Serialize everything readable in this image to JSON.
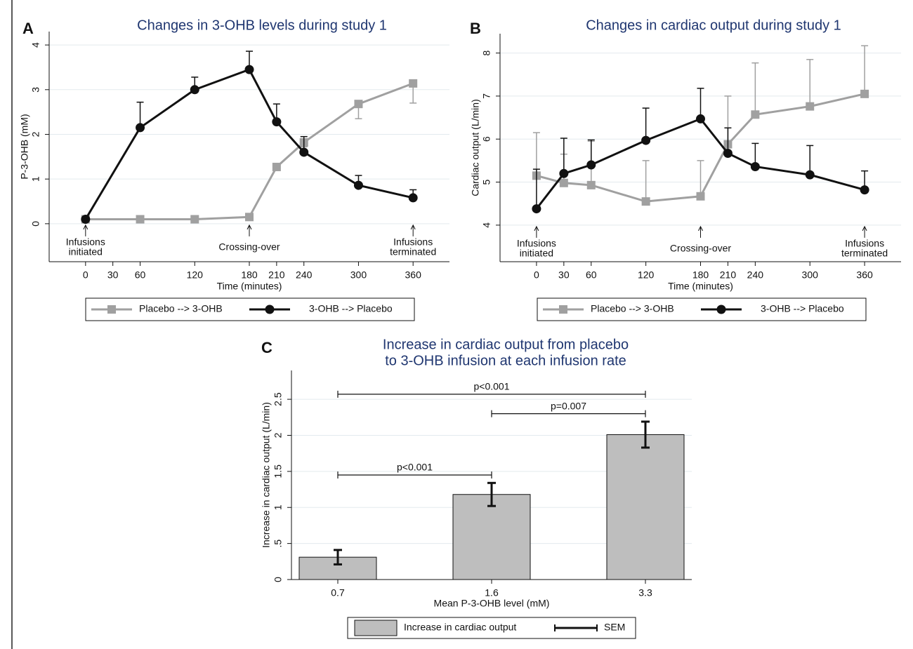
{
  "chart_data": [
    {
      "type": "line",
      "panel_label": "A",
      "title": [
        "Changes in 3-OHB levels during study 1"
      ],
      "x_label": "Time (minutes)",
      "y_label": "P-3-OHB (mM)",
      "x": [
        0,
        60,
        120,
        180,
        210,
        240,
        300,
        360
      ],
      "xlim": [
        -40,
        400
      ],
      "xticks": [
        0,
        30,
        60,
        120,
        180,
        210,
        240,
        300,
        360
      ],
      "ylim": [
        -0.85,
        4.3
      ],
      "yticks": [
        0,
        1,
        2,
        3,
        4
      ],
      "grid": true,
      "series": [
        {
          "name": "Placebo --> 3-OHB",
          "color": "#a0a0a0",
          "marker": "square",
          "error_direction": "down",
          "values": [
            0.1,
            0.1,
            0.1,
            0.15,
            1.27,
            1.82,
            2.68,
            3.14
          ],
          "errors": [
            0,
            0,
            0,
            0,
            0.05,
            0.1,
            0.33,
            0.44
          ]
        },
        {
          "name": "3-OHB --> Placebo",
          "color": "#111111",
          "marker": "circle",
          "error_direction": "up",
          "values": [
            0.1,
            2.15,
            3.0,
            3.45,
            2.28,
            1.6,
            0.86,
            0.58
          ],
          "errors": [
            0,
            0.57,
            0.28,
            0.41,
            0.4,
            0.35,
            0.22,
            0.18
          ]
        }
      ],
      "annotations": [
        {
          "x": 0,
          "lines": [
            "Infusions",
            "initiated"
          ]
        },
        {
          "x": 180,
          "lines": [
            "Crossing-over"
          ]
        },
        {
          "x": 360,
          "lines": [
            "Infusions",
            "terminated"
          ]
        }
      ]
    },
    {
      "type": "line",
      "panel_label": "B",
      "title": [
        "Changes in cardiac output during study 1"
      ],
      "x_label": "Time (minutes)",
      "y_label": "Cardiac output (L/min)",
      "x": [
        0,
        30,
        60,
        120,
        180,
        210,
        240,
        300,
        360
      ],
      "xlim": [
        -40,
        400
      ],
      "xticks": [
        0,
        30,
        60,
        120,
        180,
        210,
        240,
        300,
        360
      ],
      "ylim": [
        3.15,
        8.45
      ],
      "yticks": [
        4,
        5,
        6,
        7,
        8
      ],
      "grid": true,
      "series": [
        {
          "name": "Placebo --> 3-OHB",
          "color": "#a0a0a0",
          "marker": "square",
          "error_direction": "up",
          "values": [
            5.15,
            4.98,
            4.93,
            4.55,
            4.67,
            5.88,
            6.57,
            6.76,
            7.05
          ],
          "errors": [
            1.0,
            0.67,
            1.02,
            0.95,
            0.83,
            1.12,
            1.2,
            1.09,
            1.12
          ]
        },
        {
          "name": "3-OHB --> Placebo",
          "color": "#111111",
          "marker": "circle",
          "error_direction": "up",
          "values": [
            4.38,
            5.2,
            5.4,
            5.97,
            6.47,
            5.67,
            5.36,
            5.17,
            4.82
          ],
          "errors": [
            0.92,
            0.82,
            0.58,
            0.75,
            0.71,
            0.59,
            0.54,
            0.68,
            0.44
          ]
        }
      ],
      "annotations": [
        {
          "x": 0,
          "lines": [
            "Infusions",
            "initiated"
          ]
        },
        {
          "x": 180,
          "lines": [
            "Crossing-over"
          ]
        },
        {
          "x": 360,
          "lines": [
            "Infusions",
            "terminated"
          ]
        }
      ]
    },
    {
      "type": "bar",
      "panel_label": "C",
      "title": [
        "Increase in cardiac output from placebo",
        "to 3-OHB infusion at each infusion rate"
      ],
      "x_label": "Mean P-3-OHB level (mM)",
      "y_label": "Increase in cardiac output (L/min)",
      "categories": [
        "0.7",
        "1.6",
        "3.3"
      ],
      "ylim": [
        0,
        2.9
      ],
      "yticks": [
        0,
        {
          "value": 0.5,
          "label": ".5"
        },
        1,
        1.5,
        2,
        2.5
      ],
      "grid": true,
      "series": [
        {
          "name": "Increase in cardiac output",
          "color": "#bebebe",
          "values": [
            0.31,
            1.18,
            2.01
          ],
          "error_name": "SEM",
          "errors": [
            0.1,
            0.16,
            0.18
          ]
        }
      ],
      "significance": [
        {
          "from": "0.7",
          "to": "1.6",
          "y": 1.45,
          "label": "p<0.001"
        },
        {
          "from": "1.6",
          "to": "3.3",
          "y": 2.3,
          "label": "p=0.007"
        },
        {
          "from": "0.7",
          "to": "3.3",
          "y": 2.57,
          "label": "p<0.001"
        }
      ]
    }
  ]
}
